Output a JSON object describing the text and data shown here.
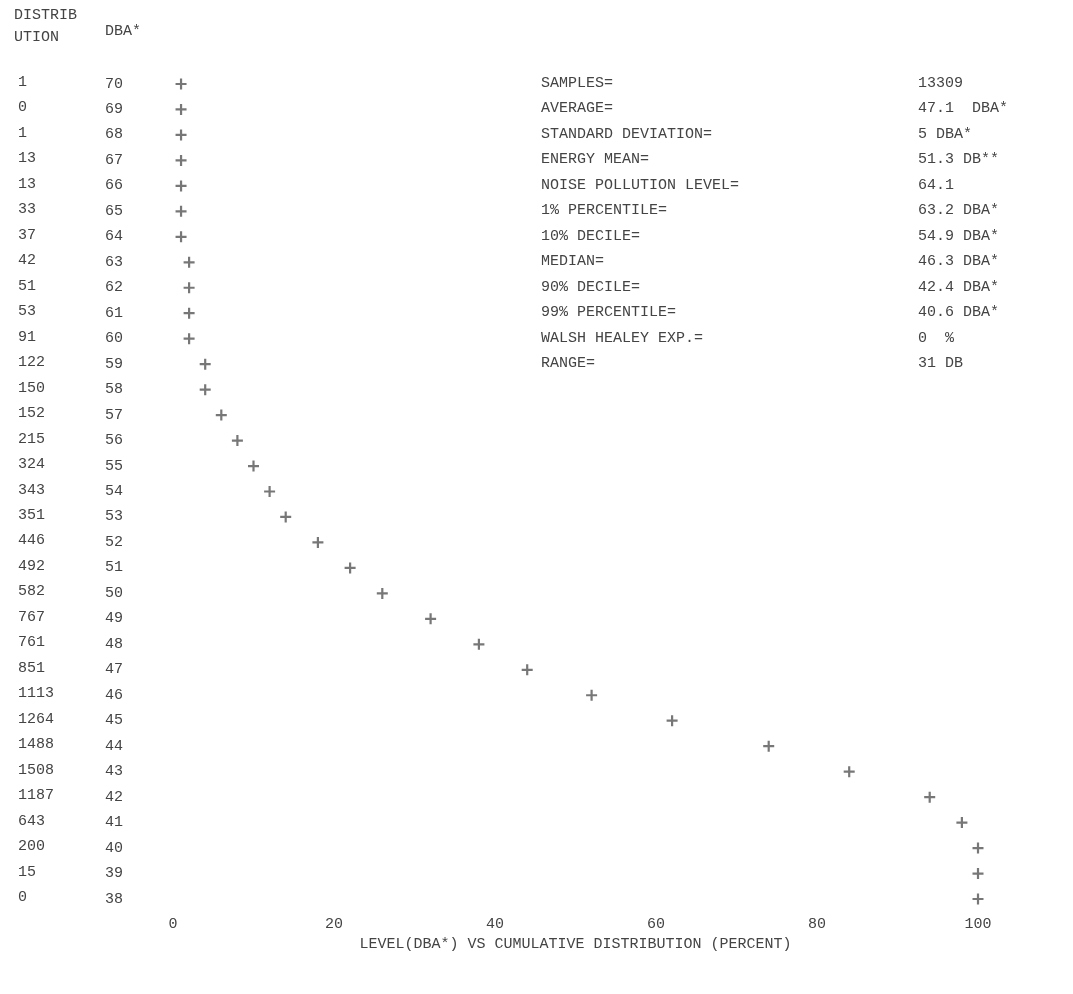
{
  "chart_data": {
    "type": "scatter",
    "xlabel": "LEVEL(DBA*) VS CUMULATIVE DISTRIBUTION (PERCENT)",
    "ylabel": "DBA*",
    "x": [
      1,
      1,
      1,
      1,
      1,
      1,
      1,
      2,
      2,
      2,
      2,
      4,
      4,
      6,
      8,
      10,
      12,
      14,
      18,
      22,
      26,
      32,
      38,
      44,
      52,
      62,
      74,
      84,
      94,
      98,
      100,
      100,
      100
    ],
    "series": [
      {
        "color": "#555555",
        "values": [
          70,
          69,
          68,
          67,
          66,
          65,
          64,
          63,
          62,
          61,
          60,
          59,
          58,
          57,
          56,
          55,
          54,
          53,
          52,
          51,
          50,
          49,
          48,
          47,
          46,
          45,
          44,
          43,
          42,
          41,
          40,
          39,
          38
        ]
      }
    ],
    "xlim": [
      0,
      100
    ],
    "xticks": [
      0,
      20,
      40,
      60,
      80,
      100
    ],
    "ylim": [
      38,
      70
    ],
    "yticks": [
      38,
      39,
      40,
      41,
      42,
      43,
      44,
      45,
      46,
      47,
      48,
      49,
      50,
      51,
      52,
      53,
      54,
      55,
      56,
      57,
      58,
      59,
      60,
      61,
      62,
      63,
      64,
      65,
      66,
      67,
      68,
      69,
      70
    ],
    "annotations": [
      "DISTRIB\nUTION",
      "1",
      "0",
      "1",
      "13",
      "13",
      "33",
      "37",
      "42",
      "51",
      "53",
      "91",
      "122",
      "150",
      "152",
      "215",
      "324",
      "343",
      "351",
      "446",
      "492",
      "582",
      "767",
      "761",
      "851",
      "1113",
      "1264",
      "1488",
      "1508",
      "1187",
      "643",
      "200",
      "15",
      "0",
      "SAMPLES=\t13309",
      "AVERAGE=\t47.1  DBA*",
      "STANDARD DEVIATION=\t5 DBA*",
      "ENERGY MEAN=\t51.3 DB**",
      "NOISE POLLUTION LEVEL=\t64.1",
      "1% PERCENTILE=\t63.2 DBA*",
      "10% DECILE=\t54.9 DBA*",
      "MEDIAN=\t46.3 DBA*",
      "90% DECILE=\t42.4 DBA*",
      "99% PERCENTILE=\t40.6 DBA*",
      "WALSH HEALEY EXP.=\t0  %",
      "RANGE=\t31 DB"
    ],
    "marker": "cross",
    "grid": false
  }
}
